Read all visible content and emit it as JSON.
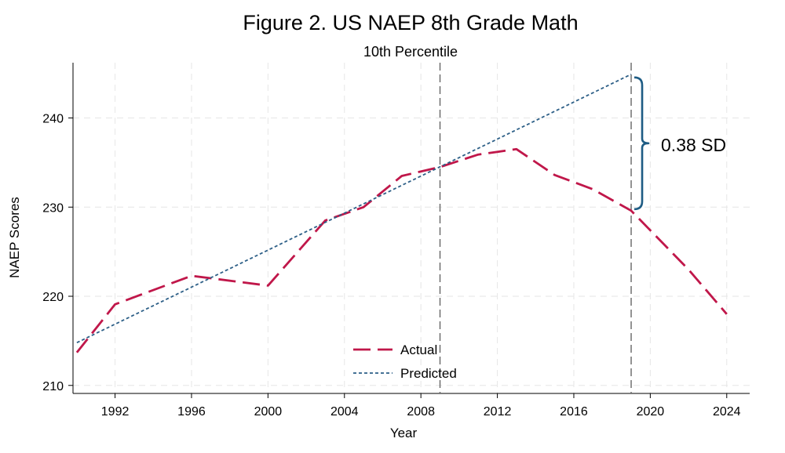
{
  "chart_data": {
    "type": "line",
    "title": "Figure 2. US NAEP 8th Grade Math",
    "subtitle": "10th Percentile",
    "xlabel": "Year",
    "ylabel": "NAEP Scores",
    "xlim": [
      1989.8,
      2025.2
    ],
    "ylim": [
      209.1,
      246.2
    ],
    "xticks": [
      1992,
      1996,
      2000,
      2004,
      2008,
      2012,
      2016,
      2020,
      2024
    ],
    "yticks": [
      210,
      220,
      230,
      240
    ],
    "grid": true,
    "legend": "bottom-center",
    "series": [
      {
        "name": "Actual",
        "color": "#c0174a",
        "style": "long-dash",
        "x": [
          1990,
          1992,
          1996,
          2000,
          2003,
          2005,
          2007,
          2009,
          2011,
          2013,
          2015,
          2017,
          2019,
          2022,
          2024
        ],
        "y": [
          213.7,
          219.1,
          222.3,
          221.2,
          228.5,
          230,
          233.5,
          234.5,
          235.9,
          236.5,
          233.6,
          232,
          229.6,
          223,
          218
        ]
      },
      {
        "name": "Predicted",
        "color": "#2d5f87",
        "style": "dotted",
        "x": [
          1990,
          2019
        ],
        "y": [
          214.8,
          244.9
        ]
      }
    ],
    "reference_lines": [
      {
        "axis": "x",
        "value": 2009,
        "color": "#666666",
        "style": "dashed"
      },
      {
        "axis": "x",
        "value": 2019,
        "color": "#666666",
        "style": "dashed"
      }
    ],
    "annotations": [
      {
        "label": "0.38 SD",
        "x": 2019,
        "y_from": 229.6,
        "y_to": 244.9,
        "color": "#1e5c84",
        "shape": "brace"
      }
    ]
  }
}
